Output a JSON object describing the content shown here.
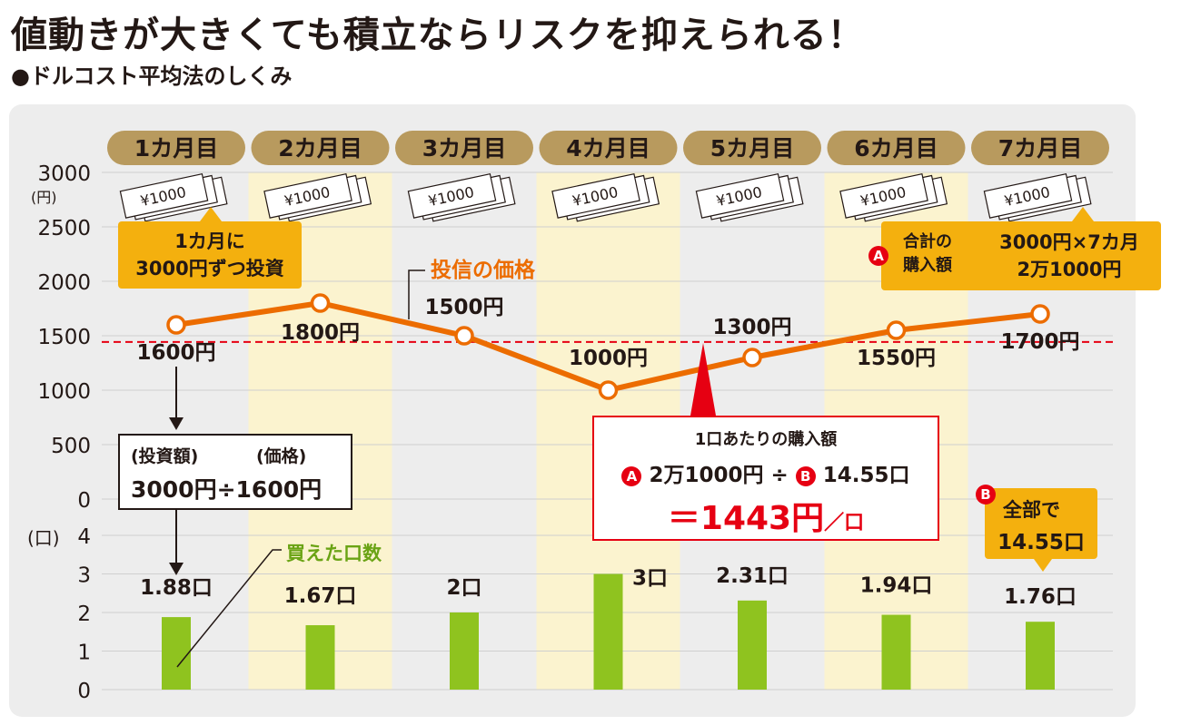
{
  "title": "値動きが大きくても積立ならリスクを抑えられる！",
  "subtitle": "●ドルコスト平均法のしくみ",
  "colors": {
    "month_pill": "#b89a5e",
    "stripe": "#fbf3cf",
    "price_line": "#ec6c00",
    "bar": "#8fc31f",
    "average_line": "#e60012",
    "callout": "#f4b00e",
    "accent_red": "#e60012"
  },
  "chart_data": {
    "type": "line+bar",
    "categories": [
      "1カ月目",
      "2カ月目",
      "3カ月目",
      "4カ月目",
      "5カ月目",
      "6カ月目",
      "7カ月目"
    ],
    "price": {
      "name": "投信の価格",
      "values": [
        1600,
        1800,
        1500,
        1000,
        1300,
        1550,
        1700
      ],
      "labels": [
        "1600円",
        "1800円",
        "1500円",
        "1000円",
        "1300円",
        "1550円",
        "1700円"
      ],
      "ylim": [
        0,
        3000
      ],
      "yticks": [
        "3000",
        "2500",
        "2000",
        "1500",
        "1000",
        "500",
        "0"
      ],
      "unit": "(円)"
    },
    "units": {
      "name": "買えた口数",
      "values": [
        1.88,
        1.67,
        2,
        3,
        2.31,
        1.94,
        1.76
      ],
      "labels": [
        "1.88口",
        "1.67口",
        "2口",
        "3口",
        "2.31口",
        "1.94口",
        "1.76口"
      ],
      "ylim": [
        0,
        4
      ],
      "yticks": [
        "4",
        "3",
        "2",
        "1",
        "0"
      ],
      "unit": "(口)"
    },
    "average_price": 1443,
    "bill_label": "¥1000"
  },
  "callouts": {
    "monthly": {
      "line1": "1カ月に",
      "line2": "3000円ずつ投資"
    },
    "total": {
      "badge": "A",
      "label1": "合計の",
      "label2": "購入額",
      "value1": "3000円×7カ月",
      "value2": "2万1000円"
    },
    "calc": {
      "label1": "(投資額)",
      "label2": "(価格)",
      "formula": "3000円÷1600円"
    },
    "average": {
      "title": "1口あたりの購入額",
      "badge_a": "A",
      "part1": "2万1000円 ÷",
      "badge_b": "B",
      "part2": "14.55口",
      "result": "＝1443円",
      "result_unit": "／口"
    },
    "units_total": {
      "badge": "B",
      "label": "全部で",
      "value": "14.55口"
    }
  }
}
